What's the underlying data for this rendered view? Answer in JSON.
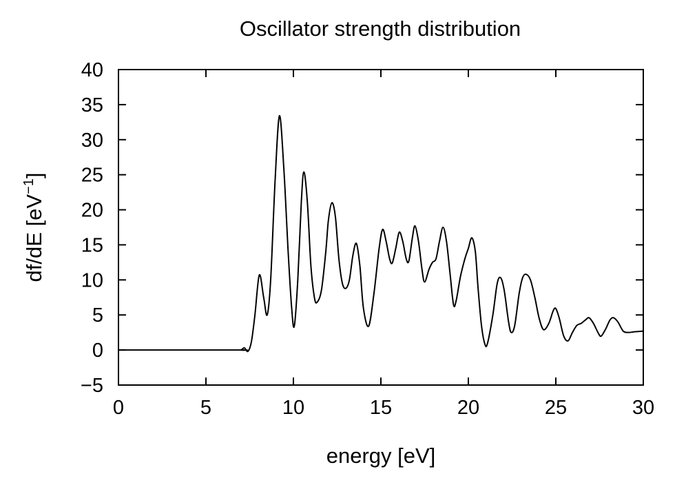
{
  "chart_data": {
    "type": "line",
    "title": "Oscillator strength distribution",
    "xlabel": "energy [eV]",
    "ylabel": {
      "main": "df/dE [eV",
      "superscript": "−1",
      "close": "]"
    },
    "xlim": [
      0,
      30
    ],
    "ylim": [
      -5,
      40
    ],
    "xticks": [
      0,
      5,
      10,
      15,
      20,
      25,
      30
    ],
    "yticks": [
      -5,
      0,
      5,
      10,
      15,
      20,
      25,
      30,
      35,
      40
    ],
    "xtick_labels": [
      "0",
      "5",
      "10",
      "15",
      "20",
      "25",
      "30"
    ],
    "ytick_labels": [
      "−5",
      "0",
      "5",
      "10",
      "15",
      "20",
      "25",
      "30",
      "35",
      "40"
    ],
    "grid": false,
    "legend": "none",
    "line_color": "#000000",
    "series": [
      {
        "points": [
          [
            0,
            0
          ],
          [
            6.8,
            0
          ],
          [
            7.0,
            0.0
          ],
          [
            7.2,
            0.3
          ],
          [
            7.4,
            -0.2
          ],
          [
            7.6,
            1.2
          ],
          [
            7.8,
            5.0
          ],
          [
            8.05,
            10.7
          ],
          [
            8.3,
            7.5
          ],
          [
            8.5,
            5.0
          ],
          [
            8.7,
            10.0
          ],
          [
            8.95,
            24.0
          ],
          [
            9.2,
            33.4
          ],
          [
            9.45,
            26.0
          ],
          [
            9.7,
            14.0
          ],
          [
            9.9,
            6.0
          ],
          [
            10.05,
            3.4
          ],
          [
            10.25,
            10.0
          ],
          [
            10.45,
            21.0
          ],
          [
            10.6,
            25.4
          ],
          [
            10.8,
            21.0
          ],
          [
            11.0,
            12.0
          ],
          [
            11.2,
            7.5
          ],
          [
            11.35,
            6.8
          ],
          [
            11.6,
            8.5
          ],
          [
            11.85,
            14.0
          ],
          [
            12.0,
            18.5
          ],
          [
            12.2,
            21.0
          ],
          [
            12.4,
            19.0
          ],
          [
            12.6,
            13.0
          ],
          [
            12.8,
            9.5
          ],
          [
            13.0,
            8.8
          ],
          [
            13.2,
            10.0
          ],
          [
            13.4,
            13.5
          ],
          [
            13.6,
            15.2
          ],
          [
            13.8,
            12.0
          ],
          [
            14.0,
            6.0
          ],
          [
            14.3,
            3.4
          ],
          [
            14.6,
            8.0
          ],
          [
            14.9,
            14.5
          ],
          [
            15.1,
            17.2
          ],
          [
            15.3,
            15.5
          ],
          [
            15.5,
            13.0
          ],
          [
            15.65,
            12.4
          ],
          [
            15.85,
            14.5
          ],
          [
            16.05,
            16.8
          ],
          [
            16.25,
            15.5
          ],
          [
            16.45,
            13.0
          ],
          [
            16.6,
            12.7
          ],
          [
            16.8,
            16.0
          ],
          [
            16.95,
            17.7
          ],
          [
            17.15,
            15.5
          ],
          [
            17.35,
            11.5
          ],
          [
            17.5,
            9.7
          ],
          [
            17.75,
            11.5
          ],
          [
            17.95,
            12.5
          ],
          [
            18.15,
            13.0
          ],
          [
            18.35,
            15.5
          ],
          [
            18.55,
            17.5
          ],
          [
            18.75,
            15.5
          ],
          [
            18.95,
            11.0
          ],
          [
            19.15,
            6.5
          ],
          [
            19.3,
            7.0
          ],
          [
            19.55,
            10.5
          ],
          [
            19.8,
            13.0
          ],
          [
            20.0,
            14.5
          ],
          [
            20.2,
            16.0
          ],
          [
            20.4,
            14.0
          ],
          [
            20.55,
            9.0
          ],
          [
            20.75,
            3.5
          ],
          [
            20.95,
            0.8
          ],
          [
            21.1,
            1.0
          ],
          [
            21.4,
            5.0
          ],
          [
            21.65,
            9.5
          ],
          [
            21.85,
            10.3
          ],
          [
            22.05,
            8.5
          ],
          [
            22.3,
            4.0
          ],
          [
            22.45,
            2.5
          ],
          [
            22.65,
            3.5
          ],
          [
            22.9,
            8.0
          ],
          [
            23.1,
            10.3
          ],
          [
            23.3,
            10.8
          ],
          [
            23.55,
            10.0
          ],
          [
            23.8,
            7.5
          ],
          [
            24.05,
            4.5
          ],
          [
            24.3,
            2.9
          ],
          [
            24.6,
            3.8
          ],
          [
            24.85,
            5.6
          ],
          [
            25.0,
            5.9
          ],
          [
            25.2,
            4.5
          ],
          [
            25.45,
            2.0
          ],
          [
            25.7,
            1.3
          ],
          [
            25.95,
            2.5
          ],
          [
            26.2,
            3.5
          ],
          [
            26.45,
            3.8
          ],
          [
            26.7,
            4.3
          ],
          [
            26.9,
            4.6
          ],
          [
            27.15,
            3.8
          ],
          [
            27.45,
            2.3
          ],
          [
            27.6,
            2.0
          ],
          [
            27.85,
            3.0
          ],
          [
            28.1,
            4.3
          ],
          [
            28.3,
            4.6
          ],
          [
            28.55,
            4.0
          ],
          [
            28.85,
            2.7
          ],
          [
            29.15,
            2.5
          ],
          [
            29.5,
            2.6
          ],
          [
            30.0,
            2.7
          ]
        ]
      }
    ]
  }
}
